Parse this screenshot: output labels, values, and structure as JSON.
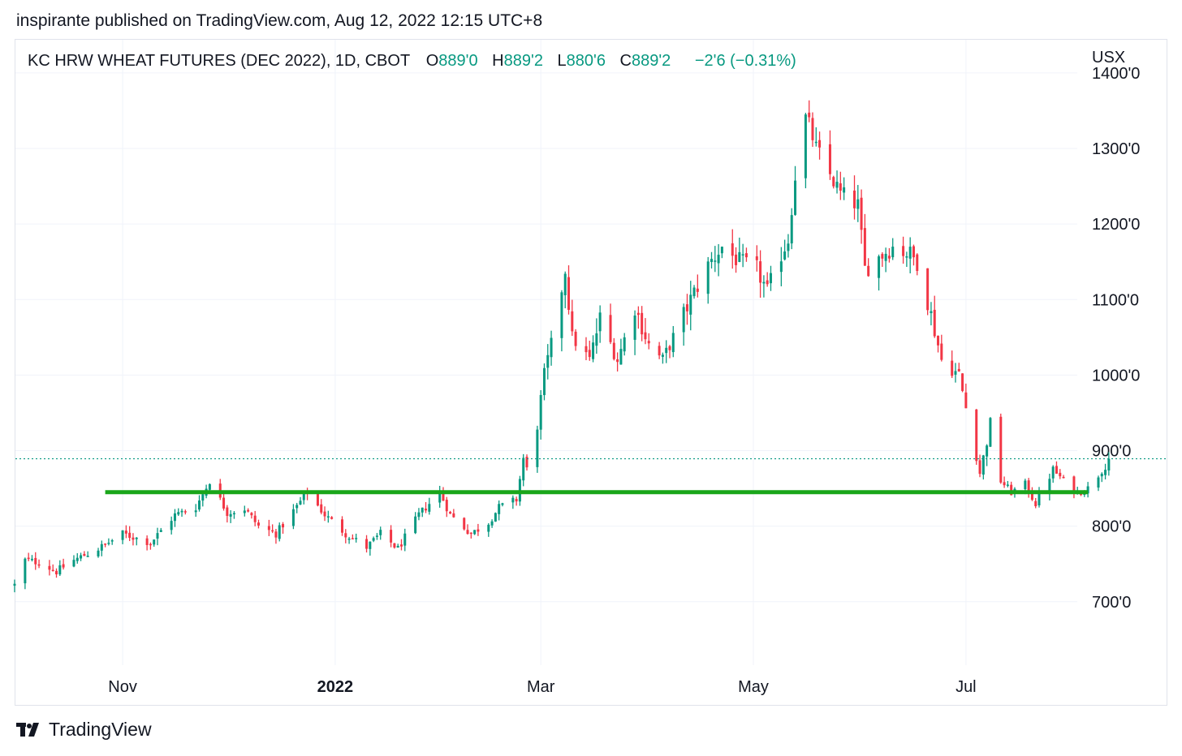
{
  "header": {
    "published": "inspirante published on TradingView.com, Aug 12, 2022 12:15 UTC+8"
  },
  "legend": {
    "title": "KC HRW WHEAT FUTURES (DEC 2022), 1D, CBOT",
    "o_label": "O",
    "o_value": "889'0",
    "h_label": "H",
    "h_value": "889'2",
    "l_label": "L",
    "l_value": "880'6",
    "c_label": "C",
    "c_value": "889'2",
    "change": "−2'6 (−0.31%)"
  },
  "footer": {
    "brand": "TradingView",
    "logo_icon": "tradingview-logo-icon"
  },
  "colors": {
    "up": "#089981",
    "down": "#f23645",
    "support": "#1aa61a",
    "grid": "#f0f3fa",
    "price_line": "#089981"
  },
  "chart_data": {
    "type": "candlestick",
    "currency": "USX",
    "y_ticks": [
      {
        "value": 700,
        "label": "700'0"
      },
      {
        "value": 800,
        "label": "800'0"
      },
      {
        "value": 900,
        "label": "900'0"
      },
      {
        "value": 1000,
        "label": "1000'0"
      },
      {
        "value": 1100,
        "label": "1100'0"
      },
      {
        "value": 1200,
        "label": "1200'0"
      },
      {
        "value": 1300,
        "label": "1300'0"
      },
      {
        "value": 1400,
        "label": "1400'0"
      }
    ],
    "ylim": [
      616,
      1445
    ],
    "x_ticks": [
      {
        "date": "2021-11-01",
        "label": "Nov",
        "bold": false
      },
      {
        "date": "2022-01-01",
        "label": "2022",
        "bold": true
      },
      {
        "date": "2022-03-01",
        "label": "Mar",
        "bold": false
      },
      {
        "date": "2022-05-01",
        "label": "May",
        "bold": false
      },
      {
        "date": "2022-07-01",
        "label": "Jul",
        "bold": false
      }
    ],
    "xlim": [
      "2021-10-01",
      "2022-09-01"
    ],
    "grid": true,
    "last_price": 889.25,
    "support_line": {
      "value": 845,
      "from": "2021-10-27",
      "to": "2022-08-05"
    },
    "anchors": [
      [
        "2021-10-01",
        722
      ],
      [
        "2021-10-04",
        755
      ],
      [
        "2021-10-08",
        752
      ],
      [
        "2021-10-13",
        740
      ],
      [
        "2021-10-18",
        755
      ],
      [
        "2021-10-25",
        770
      ],
      [
        "2021-11-01",
        790
      ],
      [
        "2021-11-09",
        778
      ],
      [
        "2021-11-16",
        815
      ],
      [
        "2021-11-22",
        825
      ],
      [
        "2021-11-26",
        860
      ],
      [
        "2021-12-01",
        818
      ],
      [
        "2021-12-06",
        823
      ],
      [
        "2021-12-10",
        800
      ],
      [
        "2021-12-15",
        790
      ],
      [
        "2021-12-20",
        820
      ],
      [
        "2021-12-24",
        845
      ],
      [
        "2021-12-29",
        815
      ],
      [
        "2022-01-04",
        790
      ],
      [
        "2022-01-10",
        772
      ],
      [
        "2022-01-14",
        790
      ],
      [
        "2022-01-19",
        770
      ],
      [
        "2022-01-25",
        815
      ],
      [
        "2022-01-31",
        845
      ],
      [
        "2022-02-03",
        815
      ],
      [
        "2022-02-09",
        790
      ],
      [
        "2022-02-14",
        805
      ],
      [
        "2022-02-17",
        825
      ],
      [
        "2022-02-22",
        835
      ],
      [
        "2022-02-24",
        890
      ],
      [
        "2022-02-25",
        875
      ],
      [
        "2022-02-28",
        935
      ],
      [
        "2022-03-02",
        1000
      ],
      [
        "2022-03-04",
        1040
      ],
      [
        "2022-03-08",
        1140
      ],
      [
        "2022-03-10",
        1050
      ],
      [
        "2022-03-15",
        1020
      ],
      [
        "2022-03-18",
        1075
      ],
      [
        "2022-03-23",
        1020
      ],
      [
        "2022-03-28",
        1090
      ],
      [
        "2022-04-01",
        1040
      ],
      [
        "2022-04-05",
        1020
      ],
      [
        "2022-04-08",
        1050
      ],
      [
        "2022-04-13",
        1100
      ],
      [
        "2022-04-18",
        1145
      ],
      [
        "2022-04-22",
        1170
      ],
      [
        "2022-04-27",
        1150
      ],
      [
        "2022-05-02",
        1140
      ],
      [
        "2022-05-05",
        1110
      ],
      [
        "2022-05-09",
        1160
      ],
      [
        "2022-05-11",
        1180
      ],
      [
        "2022-05-13",
        1265
      ],
      [
        "2022-05-16",
        1340
      ],
      [
        "2022-05-17",
        1330
      ],
      [
        "2022-05-19",
        1300
      ],
      [
        "2022-05-23",
        1265
      ],
      [
        "2022-05-26",
        1240
      ],
      [
        "2022-05-31",
        1225
      ],
      [
        "2022-06-02",
        1140
      ],
      [
        "2022-06-07",
        1160
      ],
      [
        "2022-06-10",
        1170
      ],
      [
        "2022-06-15",
        1160
      ],
      [
        "2022-06-17",
        1150
      ],
      [
        "2022-06-21",
        1080
      ],
      [
        "2022-06-24",
        1020
      ],
      [
        "2022-06-29",
        1000
      ],
      [
        "2022-07-05",
        870
      ],
      [
        "2022-07-08",
        935
      ],
      [
        "2022-07-11",
        860
      ],
      [
        "2022-07-14",
        845
      ],
      [
        "2022-07-18",
        855
      ],
      [
        "2022-07-21",
        830
      ],
      [
        "2022-07-26",
        875
      ],
      [
        "2022-07-29",
        860
      ],
      [
        "2022-08-02",
        845
      ],
      [
        "2022-08-05",
        850
      ],
      [
        "2022-08-10",
        880
      ],
      [
        "2022-08-11",
        889
      ]
    ]
  }
}
